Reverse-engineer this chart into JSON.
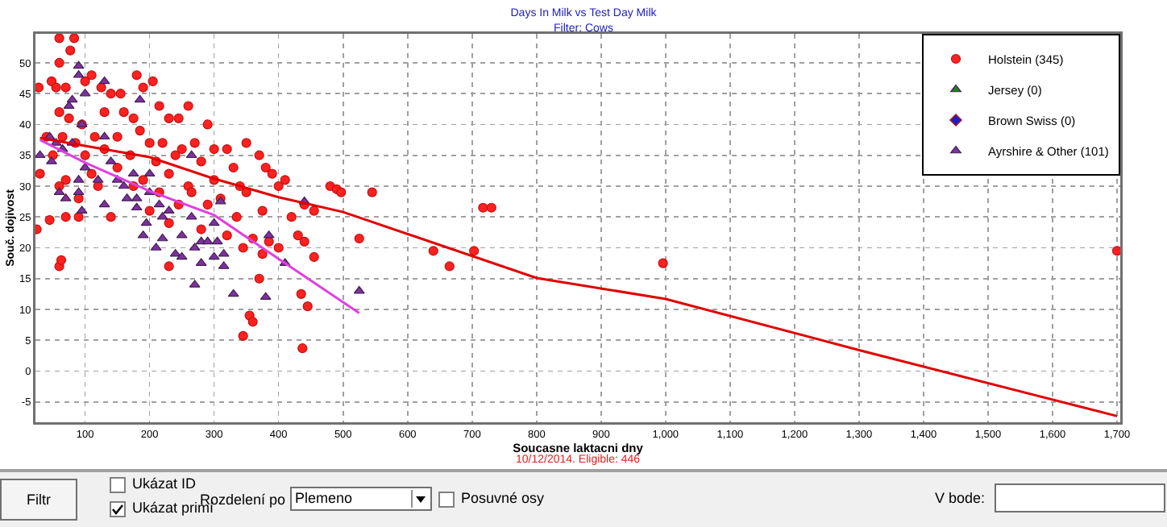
{
  "chart_data": {
    "type": "scatter",
    "title": "Days In Milk vs Test Day Milk",
    "subtitle": "Filter: Cows",
    "xlabel": "Soucasne laktacni dny",
    "ylabel": "Souč. dojivost",
    "annotations": [
      "10/12/2014. Eligible: 446",
      "Filtr",
      "Ukázat ID",
      "Ukázat primí",
      "Rozdelení po",
      "Plemeno",
      "Posuvné osy",
      "V bode:"
    ],
    "xlim": [
      23,
      1705
    ],
    "ylim": [
      -8.3,
      54.7
    ],
    "xticks": [
      100,
      200,
      300,
      400,
      500,
      600,
      700,
      800,
      900,
      {
        "value": 1000,
        "label": "1,000"
      },
      {
        "value": 1100,
        "label": "1,100"
      },
      {
        "value": 1200,
        "label": "1,200"
      },
      {
        "value": 1300,
        "label": "1,300"
      },
      {
        "value": 1400,
        "label": "1,400"
      },
      {
        "value": 1500,
        "label": "1,500"
      },
      {
        "value": 1600,
        "label": "1,600"
      },
      {
        "value": 1700,
        "label": "1,700"
      }
    ],
    "yticks": [
      -5,
      0,
      5,
      10,
      15,
      20,
      25,
      30,
      35,
      40,
      45,
      50
    ],
    "grid": true,
    "legend": "top right",
    "series": [
      {
        "name": "Holstein (345)",
        "color": "#ff2020",
        "marker": "circle",
        "x": [
          60,
          83,
          77,
          60,
          28,
          48,
          55,
          70,
          100,
          110,
          125,
          140,
          155,
          180,
          190,
          205,
          215,
          260,
          60,
          75,
          95,
          130,
          160,
          175,
          230,
          245,
          290,
          40,
          65,
          85,
          115,
          150,
          185,
          200,
          220,
          250,
          270,
          300,
          320,
          350,
          370,
          50,
          100,
          130,
          170,
          210,
          240,
          280,
          330,
          380,
          30,
          70,
          110,
          150,
          190,
          230,
          260,
          300,
          340,
          390,
          410,
          60,
          90,
          120,
          175,
          215,
          265,
          310,
          350,
          400,
          480,
          490,
          497,
          545,
          70,
          90,
          45,
          140,
          200,
          245,
          290,
          335,
          375,
          420,
          440,
          455,
          25,
          230,
          280,
          320,
          360,
          385,
          400,
          430,
          440,
          455,
          525,
          345,
          375,
          60,
          63,
          230,
          370,
          445,
          435,
          355,
          360,
          345,
          437,
          640,
          665,
          703,
          717,
          730,
          996,
          1700
        ],
        "values": [
          54,
          54,
          52,
          50,
          46,
          47,
          46,
          46,
          47,
          48,
          46,
          45,
          45,
          48,
          46,
          47,
          43,
          43,
          42,
          41,
          40,
          42,
          42,
          41,
          41,
          41,
          40,
          38,
          38,
          37,
          38,
          38,
          39,
          37,
          37,
          36,
          37,
          36,
          36,
          37,
          35,
          35,
          35,
          36,
          35,
          34,
          35,
          34,
          33,
          33,
          32,
          31,
          32,
          33,
          31,
          32,
          30,
          31,
          30,
          32,
          31,
          30,
          28,
          30,
          30,
          29,
          29,
          28,
          29,
          30,
          30,
          29.5,
          29,
          29,
          25,
          25,
          24.5,
          25,
          26,
          27,
          27,
          25,
          26,
          25,
          27,
          26,
          23,
          24,
          23,
          22,
          21.5,
          21,
          20,
          22,
          21,
          18.5,
          21.5,
          20,
          19,
          17,
          18,
          17,
          15,
          10.5,
          12.5,
          9,
          8,
          5.7,
          3.7,
          19.5,
          17,
          19.5,
          26.5,
          26.5,
          17.5,
          19.5
        ]
      },
      {
        "name": "Jersey (0)",
        "color": "#208020",
        "marker": "triangle"
      },
      {
        "name": "Brown Swiss (0)",
        "color": "#2020c0",
        "marker": "diamond"
      },
      {
        "name": "Ayrshire & Other (101)",
        "color": "#8030a0",
        "marker": "triangle",
        "x": [
          55,
          45,
          75,
          80,
          100,
          90,
          90,
          130,
          185,
          95,
          130,
          65,
          30,
          48,
          100,
          140,
          175,
          200,
          90,
          120,
          150,
          160,
          165,
          180,
          200,
          215,
          230,
          265,
          300,
          90,
          60,
          70,
          130,
          180,
          220,
          250,
          280,
          190,
          195,
          210,
          220,
          240,
          250,
          270,
          290,
          305,
          315,
          300,
          280,
          315,
          270,
          330,
          380,
          410,
          525,
          385,
          310,
          265,
          95,
          80,
          440
        ],
        "values": [
          37,
          38,
          43,
          44,
          45,
          48,
          49.5,
          47,
          44,
          40,
          38,
          36,
          35,
          34,
          33,
          34,
          32,
          32,
          31,
          31,
          31,
          30,
          28,
          28,
          29,
          27,
          26,
          25,
          24,
          29,
          29,
          28,
          27,
          26.5,
          25,
          22,
          21,
          22,
          24,
          20,
          21.5,
          19,
          18.5,
          20,
          21,
          21,
          19,
          18.5,
          17.5,
          17,
          14,
          12.5,
          12,
          17.5,
          13,
          22,
          27.5,
          35,
          26,
          37,
          27.5
        ]
      },
      {
        "type": "line",
        "color": "#e00000",
        "marker": "none",
        "x": [
          30,
          200,
          300,
          400,
          500,
          800,
          1000,
          1300,
          1700
        ],
        "values": [
          37.8,
          34.7,
          31.2,
          28.2,
          25.8,
          15.1,
          11.7,
          3.4,
          -7.3
        ]
      },
      {
        "type": "line",
        "color": "#e040e0",
        "marker": "none",
        "x": [
          30,
          100,
          200,
          300,
          400,
          525
        ],
        "values": [
          37.5,
          33.8,
          29.2,
          25.3,
          18.2,
          9.4
        ]
      }
    ]
  }
}
